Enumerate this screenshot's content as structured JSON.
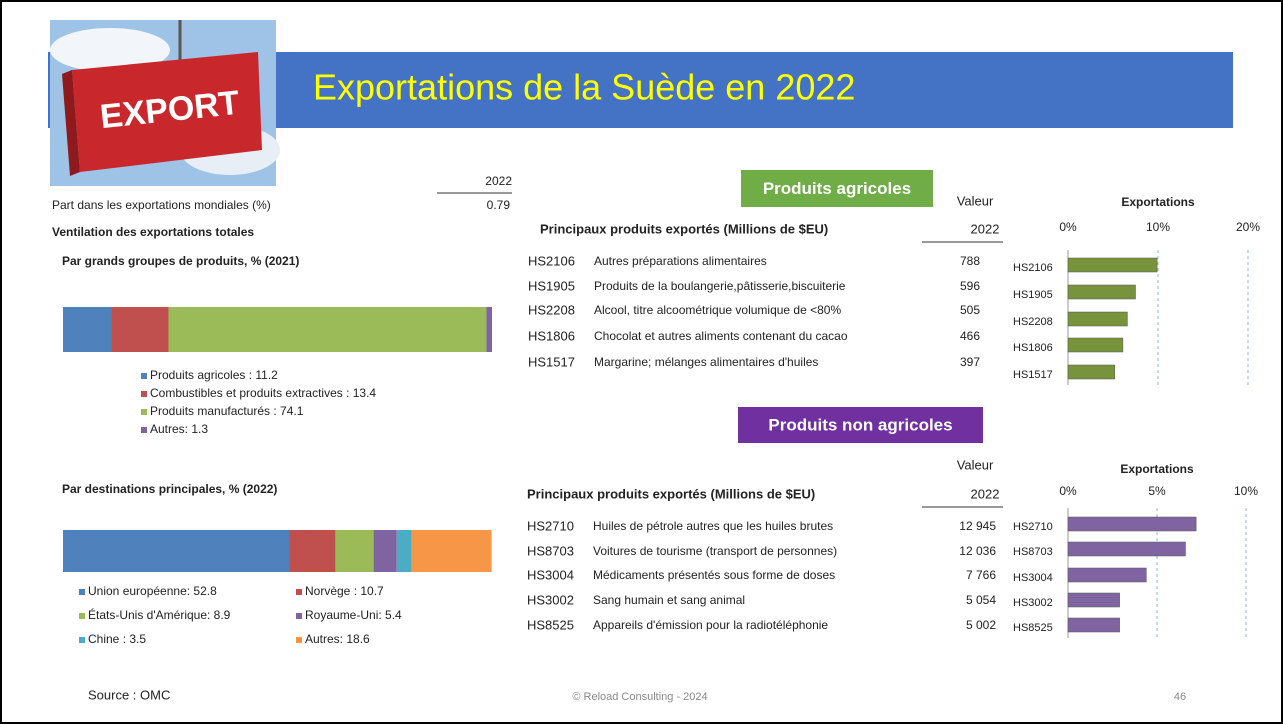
{
  "header": {
    "title": "Exportations de la Suède en 2022",
    "logo_text": "EXPORT"
  },
  "summary": {
    "year_header": "2022",
    "share_label": "Part dans les exportations mondiales (%)",
    "share_value": "0.79",
    "breakdown_title": "Ventilation des exportations totales"
  },
  "chart_data": [
    {
      "type": "stacked_bar",
      "title": "Par grands groupes de produits, % (2021)",
      "xlim": [
        0,
        100
      ],
      "series": [
        {
          "name": "Produits agricoles : 11.2",
          "color": "#4f81bd",
          "values": [
            11.2
          ]
        },
        {
          "name": "Combustibles et produits extractives : 13.4",
          "color": "#c0504d",
          "values": [
            13.4
          ]
        },
        {
          "name": "Produits manufacturés : 74.1",
          "color": "#9bbb59",
          "values": [
            74.1
          ]
        },
        {
          "name": "Autres: 1.3",
          "color": "#8064a2",
          "values": [
            1.3
          ]
        }
      ]
    },
    {
      "type": "stacked_bar",
      "title": "Par destinations principales, % (2022)",
      "xlim": [
        0,
        100
      ],
      "series": [
        {
          "name": "Union européenne: 52.8",
          "color": "#4f81bd",
          "values": [
            52.8
          ]
        },
        {
          "name": "Norvège : 10.7",
          "color": "#c0504d",
          "values": [
            10.7
          ]
        },
        {
          "name": "États-Unis d'Amérique: 8.9",
          "color": "#9bbb59",
          "values": [
            8.9
          ]
        },
        {
          "name": "Royaume-Uni: 5.4",
          "color": "#8064a2",
          "values": [
            5.4
          ]
        },
        {
          "name": "Chine : 3.5",
          "color": "#4bacc6",
          "values": [
            3.5
          ]
        },
        {
          "name": "Autres: 18.6",
          "color": "#f79646",
          "values": [
            18.6
          ]
        }
      ]
    },
    {
      "type": "hbar",
      "title": "Exportations",
      "categories": [
        "HS2106",
        "HS1905",
        "HS2208",
        "HS1806",
        "HS1517"
      ],
      "values": [
        9.9,
        7.5,
        6.6,
        6.1,
        5.2
      ],
      "color": "#77933c",
      "xlim": [
        0,
        20
      ],
      "xticks": [
        {
          "value": 0,
          "label": "0%"
        },
        {
          "value": 10,
          "label": "10%"
        },
        {
          "value": 20,
          "label": "20%"
        }
      ],
      "grid": true
    },
    {
      "type": "hbar",
      "title": "Exportations",
      "categories": [
        "HS2710",
        "HS8703",
        "HS3004",
        "HS3002",
        "HS8525"
      ],
      "values": [
        7.2,
        6.6,
        4.4,
        2.9,
        2.9
      ],
      "color": "#8064a2",
      "xlim": [
        0,
        10
      ],
      "xticks": [
        {
          "value": 0,
          "label": "0%"
        },
        {
          "value": 5,
          "label": "5%"
        },
        {
          "value": 10,
          "label": "10%"
        }
      ],
      "grid": true
    }
  ],
  "sections": [
    {
      "label": "Produits agricoles",
      "table": {
        "header": "Principaux produits exportés (Millions de $EU)",
        "value_header": "Valeur",
        "year_header": "2022",
        "rows": [
          [
            "HS2106",
            "Autres préparations alimentaires",
            "788"
          ],
          [
            "HS1905",
            "Produits de la boulangerie,pâtisserie,biscuiterie",
            "596"
          ],
          [
            "HS2208",
            "Alcool, titre alcoométrique volumique de <80%",
            "505"
          ],
          [
            "HS1806",
            "Chocolat et autres aliments contenant du cacao",
            "466"
          ],
          [
            "HS1517",
            "Margarine; mélanges alimentaires d'huiles",
            "397"
          ]
        ]
      }
    },
    {
      "label": "Produits non agricoles",
      "table": {
        "header": "Principaux produits exportés (Millions de $EU)",
        "value_header": "Valeur",
        "year_header": "2022",
        "rows": [
          [
            "HS2710",
            "Huiles de pétrole autres que les huiles brutes",
            "12 945"
          ],
          [
            "HS8703",
            "Voitures de tourisme (transport de personnes)",
            "12 036"
          ],
          [
            "HS3004",
            "Médicaments présentés sous forme de doses",
            "7 766"
          ],
          [
            "HS3002",
            "Sang humain et sang animal",
            "5 054"
          ],
          [
            "HS8525",
            "Appareils d'émission pour la radiotéléphonie",
            "5 002"
          ]
        ]
      }
    }
  ],
  "footer": {
    "source": "Source : OMC",
    "copyright": "© Reload Consulting - 2024",
    "page": "46"
  }
}
